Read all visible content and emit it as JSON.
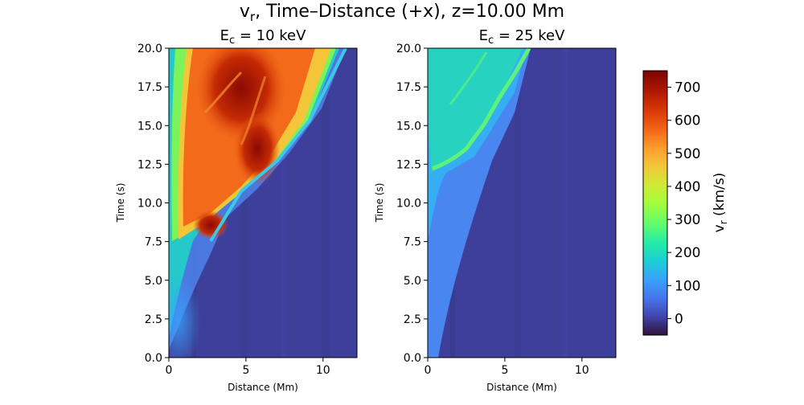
{
  "figure": {
    "suptitle_main": "v",
    "suptitle_sub": "r",
    "suptitle_rest": ", Time–Distance (+x), z=10.00 Mm"
  },
  "chart_data": [
    {
      "type": "heatmap",
      "title_main": "E",
      "title_sub": "c",
      "title_rest": " = 10 keV",
      "xlabel": "Distance (Mm)",
      "ylabel": "Time (s)",
      "xlim": [
        0,
        12.2
      ],
      "ylim": [
        0,
        20
      ],
      "x_ticks": [
        0,
        5,
        10
      ],
      "y_ticks": [
        "0.0",
        "2.5",
        "5.0",
        "7.5",
        "10.0",
        "12.5",
        "15.0",
        "17.5",
        "20.0"
      ],
      "front": [
        [
          0,
          0.5
        ],
        [
          1.5,
          5.0
        ],
        [
          2.5,
          7.3
        ],
        [
          3.5,
          9.5
        ],
        [
          5.0,
          11.3
        ],
        [
          7.0,
          13.6
        ],
        [
          9.0,
          16.3
        ],
        [
          10.7,
          18.8
        ],
        [
          11.8,
          20.0
        ]
      ],
      "description": "wave front expands outward; inside front speeds 300-700 km/s, peak ~750 km/s near x=5-7 Mm, t=15-19 s"
    },
    {
      "type": "heatmap",
      "title_main": "E",
      "title_sub": "c",
      "title_rest": " = 25 keV",
      "xlabel": "Distance (Mm)",
      "ylabel": "Time (s)",
      "xlim": [
        0,
        12.2
      ],
      "ylim": [
        0,
        20
      ],
      "x_ticks": [
        0,
        5,
        10
      ],
      "y_ticks": [
        "0.0",
        "2.5",
        "5.0",
        "7.5",
        "10.0",
        "12.5",
        "15.0",
        "17.5",
        "20.0"
      ],
      "front": [
        [
          0,
          7.5
        ],
        [
          1.0,
          9.8
        ],
        [
          2.0,
          11.8
        ],
        [
          3.0,
          13.6
        ],
        [
          4.0,
          15.8
        ],
        [
          5.0,
          17.6
        ],
        [
          6.0,
          19.3
        ],
        [
          6.5,
          20.0
        ]
      ],
      "description": "weaker response; speeds 100-300 km/s behind a front starting near t=12 s"
    }
  ],
  "colorbar": {
    "label_main": "v",
    "label_sub": "r",
    "label_rest": " (km/s)",
    "min": -50,
    "max": 750,
    "ticks": [
      "0",
      "100",
      "200",
      "300",
      "400",
      "500",
      "600",
      "700"
    ],
    "colormap": "turbo"
  }
}
